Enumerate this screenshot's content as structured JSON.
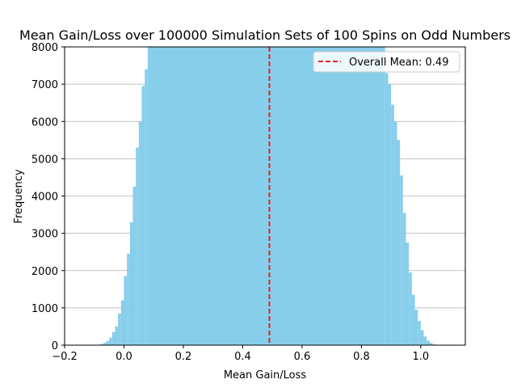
{
  "chart_data": {
    "type": "bar",
    "title": "Mean Gain/Loss over 100000 Simulation Sets of 100 Spins on Odd Numbers",
    "xlabel": "Mean Gain/Loss",
    "ylabel": "Frequency",
    "xlim": [
      -0.2,
      1.15
    ],
    "ylim": [
      0,
      8000
    ],
    "xticks": [
      -0.2,
      0.0,
      0.2,
      0.4,
      0.6,
      0.8,
      1.0
    ],
    "xtick_labels": [
      "−0.2",
      "0.0",
      "0.2",
      "0.4",
      "0.6",
      "0.8",
      "1.0"
    ],
    "yticks": [
      0,
      1000,
      2000,
      3000,
      4000,
      5000,
      6000,
      7000,
      8000
    ],
    "ytick_labels": [
      "0",
      "1000",
      "2000",
      "3000",
      "4000",
      "5000",
      "6000",
      "7000",
      "8000"
    ],
    "grid": "y-major",
    "bar_color": "#87ceeb",
    "mean_line": {
      "x": 0.49,
      "color": "#d62728",
      "style": "dashed",
      "label": "Overall Mean: 0.49"
    },
    "legend_position": "top-right",
    "bins": [
      {
        "x0": -0.08,
        "x1": -0.07,
        "y": 30
      },
      {
        "x0": -0.07,
        "x1": -0.06,
        "y": 60
      },
      {
        "x0": -0.06,
        "x1": -0.05,
        "y": 110
      },
      {
        "x0": -0.05,
        "x1": -0.04,
        "y": 200
      },
      {
        "x0": -0.04,
        "x1": -0.03,
        "y": 350
      },
      {
        "x0": -0.03,
        "x1": -0.02,
        "y": 500
      },
      {
        "x0": -0.02,
        "x1": -0.01,
        "y": 850
      },
      {
        "x0": -0.01,
        "x1": 0.0,
        "y": 1200
      },
      {
        "x0": 0.0,
        "x1": 0.01,
        "y": 1850
      },
      {
        "x0": 0.01,
        "x1": 0.02,
        "y": 2450
      },
      {
        "x0": 0.02,
        "x1": 0.03,
        "y": 3300
      },
      {
        "x0": 0.03,
        "x1": 0.04,
        "y": 4250
      },
      {
        "x0": 0.04,
        "x1": 0.05,
        "y": 5300
      },
      {
        "x0": 0.05,
        "x1": 0.06,
        "y": 6000
      },
      {
        "x0": 0.06,
        "x1": 0.07,
        "y": 6950
      },
      {
        "x0": 0.07,
        "x1": 0.08,
        "y": 7400
      },
      {
        "x0": 0.08,
        "x1": 0.88,
        "y": 8000
      },
      {
        "x0": 0.88,
        "x1": 0.89,
        "y": 7300
      },
      {
        "x0": 0.89,
        "x1": 0.9,
        "y": 7000
      },
      {
        "x0": 0.9,
        "x1": 0.91,
        "y": 6450
      },
      {
        "x0": 0.91,
        "x1": 0.92,
        "y": 6000
      },
      {
        "x0": 0.92,
        "x1": 0.93,
        "y": 5500
      },
      {
        "x0": 0.93,
        "x1": 0.94,
        "y": 4550
      },
      {
        "x0": 0.94,
        "x1": 0.95,
        "y": 3550
      },
      {
        "x0": 0.95,
        "x1": 0.96,
        "y": 2750
      },
      {
        "x0": 0.96,
        "x1": 0.97,
        "y": 1950
      },
      {
        "x0": 0.97,
        "x1": 0.98,
        "y": 1350
      },
      {
        "x0": 0.98,
        "x1": 0.99,
        "y": 950
      },
      {
        "x0": 0.99,
        "x1": 1.0,
        "y": 650
      },
      {
        "x0": 1.0,
        "x1": 1.01,
        "y": 400
      },
      {
        "x0": 1.01,
        "x1": 1.02,
        "y": 230
      },
      {
        "x0": 1.02,
        "x1": 1.03,
        "y": 120
      },
      {
        "x0": 1.03,
        "x1": 1.04,
        "y": 60
      },
      {
        "x0": 1.04,
        "x1": 1.05,
        "y": 20
      }
    ]
  }
}
